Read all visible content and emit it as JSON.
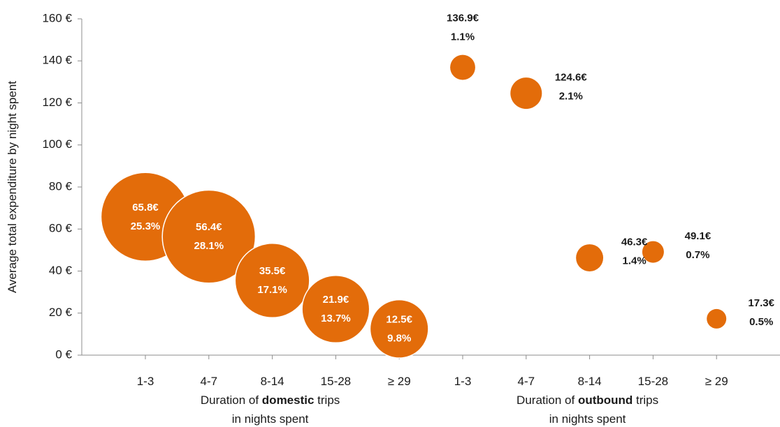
{
  "chart_data": {
    "type": "scatter",
    "ylabel": "Average total expenditure by night spent",
    "ylim": [
      0,
      160
    ],
    "yticks": [
      0,
      20,
      40,
      60,
      80,
      100,
      120,
      140,
      160
    ],
    "ytick_format": "{v} €",
    "grid": false,
    "color": "#e36c0a",
    "groups": [
      {
        "label_parts": [
          "Duration of ",
          "domestic",
          " trips"
        ],
        "label_line2": "in nights spent",
        "categories": [
          "1-3",
          "4-7",
          "8-14",
          "15-28",
          "≥ 29"
        ],
        "values": [
          65.8,
          56.4,
          35.5,
          21.9,
          12.5
        ],
        "shares": [
          25.3,
          28.1,
          17.1,
          13.7,
          9.8
        ],
        "value_labels": [
          "65.8€",
          "56.4€",
          "35.5€",
          "21.9€",
          "12.5€"
        ],
        "share_labels": [
          "25.3%",
          "28.1%",
          "17.1%",
          "13.7%",
          "9.8%"
        ]
      },
      {
        "label_parts": [
          "Duration of ",
          "outbound",
          " trips"
        ],
        "label_line2": "in nights spent",
        "categories": [
          "1-3",
          "4-7",
          "8-14",
          "15-28",
          "≥ 29"
        ],
        "values": [
          136.9,
          124.6,
          46.3,
          49.1,
          17.3
        ],
        "shares": [
          1.1,
          2.1,
          1.4,
          0.7,
          0.5
        ],
        "value_labels": [
          "136.9€",
          "124.6€",
          "46.3€",
          "49.1€",
          "17.3€"
        ],
        "share_labels": [
          "1.1%",
          "2.1%",
          "1.4%",
          "0.7%",
          "0.5%"
        ]
      }
    ]
  }
}
